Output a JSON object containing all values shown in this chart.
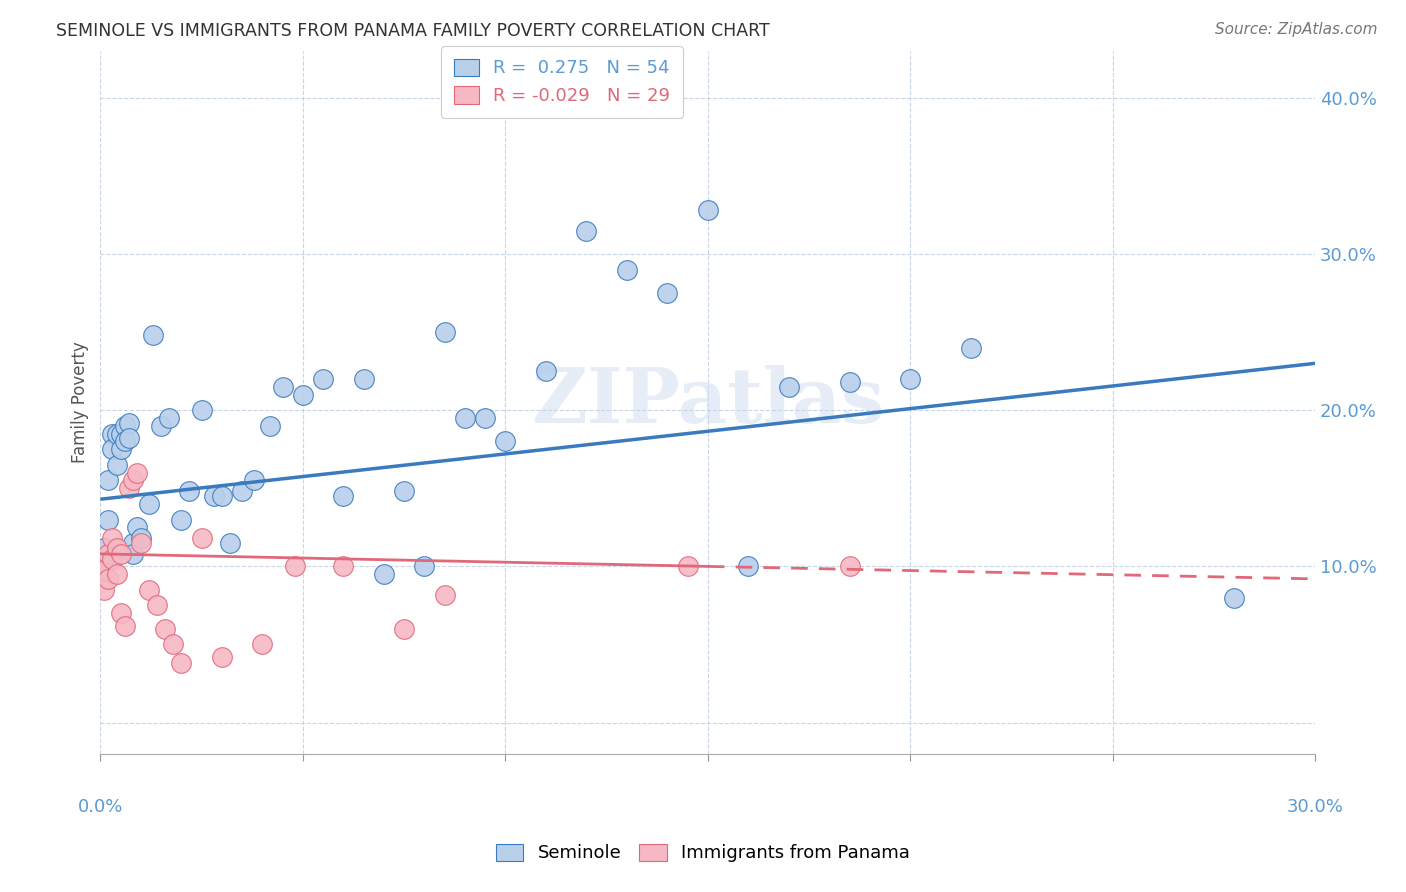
{
  "title": "SEMINOLE VS IMMIGRANTS FROM PANAMA FAMILY POVERTY CORRELATION CHART",
  "source": "Source: ZipAtlas.com",
  "ylabel": "Family Poverty",
  "yticks": [
    0.0,
    0.1,
    0.2,
    0.3,
    0.4
  ],
  "ytick_labels": [
    "",
    "10.0%",
    "20.0%",
    "30.0%",
    "40.0%"
  ],
  "xlim": [
    0.0,
    0.3
  ],
  "ylim": [
    -0.02,
    0.43
  ],
  "seminole_R": 0.275,
  "seminole_N": 54,
  "panama_R": -0.029,
  "panama_N": 29,
  "seminole_color": "#b8d0ea",
  "panama_color": "#f5b8c4",
  "seminole_line_color": "#3a7abf",
  "panama_line_color": "#e06878",
  "watermark": "ZIPatlas",
  "seminole_line_x0": 0.0,
  "seminole_line_y0": 0.143,
  "seminole_line_x1": 0.3,
  "seminole_line_y1": 0.23,
  "panama_line_x0": 0.0,
  "panama_line_y0": 0.108,
  "panama_line_x1": 0.3,
  "panama_line_y1": 0.092,
  "seminole_x": [
    0.001,
    0.001,
    0.002,
    0.002,
    0.003,
    0.003,
    0.004,
    0.004,
    0.005,
    0.005,
    0.006,
    0.006,
    0.007,
    0.007,
    0.008,
    0.008,
    0.009,
    0.01,
    0.012,
    0.013,
    0.015,
    0.017,
    0.02,
    0.022,
    0.025,
    0.028,
    0.03,
    0.032,
    0.035,
    0.038,
    0.042,
    0.045,
    0.05,
    0.055,
    0.06,
    0.065,
    0.07,
    0.075,
    0.08,
    0.085,
    0.09,
    0.095,
    0.1,
    0.11,
    0.12,
    0.13,
    0.14,
    0.15,
    0.16,
    0.17,
    0.185,
    0.2,
    0.215,
    0.28
  ],
  "seminole_y": [
    0.112,
    0.098,
    0.155,
    0.13,
    0.185,
    0.175,
    0.185,
    0.165,
    0.185,
    0.175,
    0.19,
    0.18,
    0.192,
    0.182,
    0.115,
    0.108,
    0.125,
    0.118,
    0.14,
    0.248,
    0.19,
    0.195,
    0.13,
    0.148,
    0.2,
    0.145,
    0.145,
    0.115,
    0.148,
    0.155,
    0.19,
    0.215,
    0.21,
    0.22,
    0.145,
    0.22,
    0.095,
    0.148,
    0.1,
    0.25,
    0.195,
    0.195,
    0.18,
    0.225,
    0.315,
    0.29,
    0.275,
    0.328,
    0.1,
    0.215,
    0.218,
    0.22,
    0.24,
    0.08
  ],
  "panama_x": [
    0.001,
    0.001,
    0.002,
    0.002,
    0.003,
    0.003,
    0.004,
    0.004,
    0.005,
    0.005,
    0.006,
    0.007,
    0.008,
    0.009,
    0.01,
    0.012,
    0.014,
    0.016,
    0.018,
    0.02,
    0.025,
    0.03,
    0.04,
    0.048,
    0.06,
    0.075,
    0.085,
    0.145,
    0.185
  ],
  "panama_y": [
    0.098,
    0.085,
    0.108,
    0.092,
    0.118,
    0.105,
    0.112,
    0.095,
    0.108,
    0.07,
    0.062,
    0.15,
    0.155,
    0.16,
    0.115,
    0.085,
    0.075,
    0.06,
    0.05,
    0.038,
    0.118,
    0.042,
    0.05,
    0.1,
    0.1,
    0.06,
    0.082,
    0.1,
    0.1
  ]
}
